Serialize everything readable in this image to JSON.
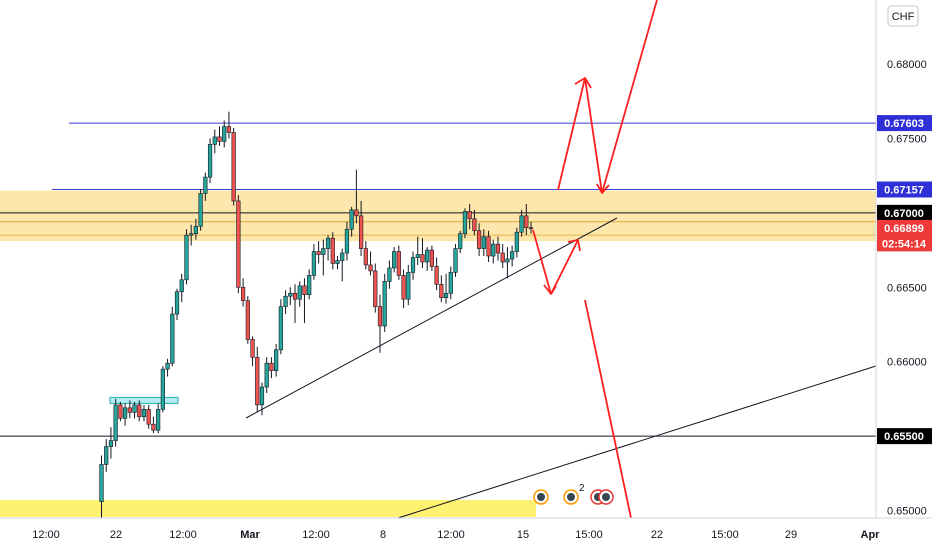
{
  "colors": {
    "up": "#26a69a",
    "down": "#ef5350",
    "zone": "#fbd36a",
    "blue_line": "#3c3cd6",
    "black_line": "#131722",
    "arrow": "#ff1f1f",
    "yellow_bar": "#ffee58",
    "cyan_box": "#b2ebf2"
  },
  "price_axis": {
    "currency": "CHF",
    "ticks": [
      "0.68000",
      "0.67500",
      "0.67000",
      "0.66500",
      "0.66000",
      "0.65500",
      "0.65000"
    ],
    "tick_values": [
      0.68,
      0.675,
      0.67,
      0.665,
      0.66,
      0.655,
      0.65
    ],
    "labels": [
      {
        "text": "0.67603",
        "value": 0.67603,
        "bg": "#2f2fd8",
        "fg": "#ffffff"
      },
      {
        "text": "0.67157",
        "value": 0.67157,
        "bg": "#2f2fd8",
        "fg": "#ffffff"
      },
      {
        "text": "0.67000",
        "value": 0.67,
        "bg": "#000000",
        "fg": "#ffffff"
      },
      {
        "text": "0.66899",
        "value": 0.66899,
        "bg": "#ef3a3a",
        "fg": "#ffffff"
      },
      {
        "text": "02:54:14",
        "value": 0.66795,
        "bg": "#ef3a3a",
        "fg": "#ffffff"
      },
      {
        "text": "0.65500",
        "value": 0.655,
        "bg": "#000000",
        "fg": "#ffffff"
      }
    ]
  },
  "time_axis": {
    "labels": [
      "12:00",
      "22",
      "12:00",
      "Mar",
      "12:00",
      "8",
      "12:00",
      "15",
      "15:00",
      "22",
      "15:00",
      "29",
      "Apr"
    ],
    "bold": [
      "Mar",
      "Apr"
    ]
  },
  "chart_data": {
    "type": "candlestick",
    "symbol_currency": "CHF",
    "ylim": [
      0.6495,
      0.6843
    ],
    "candles": [
      [
        0.6506,
        0.6537,
        0.6494,
        0.6531
      ],
      [
        0.6531,
        0.6548,
        0.6526,
        0.6543
      ],
      [
        0.6543,
        0.6556,
        0.6535,
        0.6547
      ],
      [
        0.6547,
        0.6575,
        0.6543,
        0.6571
      ],
      [
        0.6571,
        0.6573,
        0.656,
        0.6562
      ],
      [
        0.6562,
        0.6572,
        0.6557,
        0.6569
      ],
      [
        0.6569,
        0.6574,
        0.6562,
        0.6566
      ],
      [
        0.6566,
        0.6573,
        0.6562,
        0.6571
      ],
      [
        0.6571,
        0.6574,
        0.656,
        0.6563
      ],
      [
        0.6563,
        0.6571,
        0.656,
        0.6568
      ],
      [
        0.6568,
        0.6571,
        0.6555,
        0.6558
      ],
      [
        0.6558,
        0.6563,
        0.6552,
        0.6554
      ],
      [
        0.6554,
        0.6572,
        0.6552,
        0.6568
      ],
      [
        0.6568,
        0.6597,
        0.6566,
        0.6595
      ],
      [
        0.6595,
        0.6602,
        0.659,
        0.6599
      ],
      [
        0.6599,
        0.6637,
        0.6597,
        0.6632
      ],
      [
        0.6632,
        0.6649,
        0.6628,
        0.6647
      ],
      [
        0.6647,
        0.6659,
        0.664,
        0.6655
      ],
      [
        0.6655,
        0.6689,
        0.6652,
        0.6685
      ],
      [
        0.6685,
        0.6692,
        0.6678,
        0.6686
      ],
      [
        0.6686,
        0.6696,
        0.6682,
        0.6691
      ],
      [
        0.6691,
        0.6716,
        0.6688,
        0.6713
      ],
      [
        0.6713,
        0.6727,
        0.6708,
        0.6724
      ],
      [
        0.6724,
        0.675,
        0.672,
        0.6746
      ],
      [
        0.6746,
        0.6756,
        0.674,
        0.6751
      ],
      [
        0.6751,
        0.6758,
        0.6745,
        0.6748
      ],
      [
        0.6748,
        0.6762,
        0.6744,
        0.6758
      ],
      [
        0.6758,
        0.6768,
        0.675,
        0.6754
      ],
      [
        0.6754,
        0.6757,
        0.6705,
        0.6708
      ],
      [
        0.6708,
        0.6712,
        0.6646,
        0.665
      ],
      [
        0.665,
        0.6656,
        0.6637,
        0.6641
      ],
      [
        0.6641,
        0.6644,
        0.6612,
        0.6615
      ],
      [
        0.6615,
        0.6617,
        0.6597,
        0.6603
      ],
      [
        0.6603,
        0.661,
        0.6566,
        0.6571
      ],
      [
        0.6571,
        0.6586,
        0.6564,
        0.6583
      ],
      [
        0.6583,
        0.6603,
        0.6579,
        0.6599
      ],
      [
        0.6599,
        0.6603,
        0.6589,
        0.6594
      ],
      [
        0.6594,
        0.6612,
        0.659,
        0.6608
      ],
      [
        0.6608,
        0.6642,
        0.6605,
        0.6637
      ],
      [
        0.6637,
        0.6648,
        0.6632,
        0.6644
      ],
      [
        0.6644,
        0.665,
        0.6638,
        0.6646
      ],
      [
        0.6646,
        0.6652,
        0.6626,
        0.6642
      ],
      [
        0.6642,
        0.6654,
        0.6637,
        0.6651
      ],
      [
        0.6651,
        0.6656,
        0.6626,
        0.6645
      ],
      [
        0.6645,
        0.6662,
        0.6642,
        0.6658
      ],
      [
        0.6658,
        0.6679,
        0.6655,
        0.6674
      ],
      [
        0.6674,
        0.6681,
        0.6666,
        0.6672
      ],
      [
        0.6672,
        0.6682,
        0.6658,
        0.6676
      ],
      [
        0.6676,
        0.6685,
        0.6668,
        0.6683
      ],
      [
        0.6683,
        0.6687,
        0.6662,
        0.6666
      ],
      [
        0.6666,
        0.6671,
        0.6662,
        0.6668
      ],
      [
        0.6668,
        0.6676,
        0.6654,
        0.6673
      ],
      [
        0.6673,
        0.6694,
        0.6668,
        0.6689
      ],
      [
        0.6689,
        0.6704,
        0.6684,
        0.6702
      ],
      [
        0.6702,
        0.6729,
        0.6693,
        0.6698
      ],
      [
        0.6698,
        0.6708,
        0.6671,
        0.6676
      ],
      [
        0.6676,
        0.6681,
        0.6662,
        0.6665
      ],
      [
        0.6665,
        0.6674,
        0.6658,
        0.6661
      ],
      [
        0.6661,
        0.6666,
        0.6633,
        0.6637
      ],
      [
        0.6637,
        0.6645,
        0.6606,
        0.6624
      ],
      [
        0.6624,
        0.6659,
        0.662,
        0.6654
      ],
      [
        0.6654,
        0.6668,
        0.6649,
        0.6663
      ],
      [
        0.6663,
        0.6677,
        0.666,
        0.6674
      ],
      [
        0.6674,
        0.6678,
        0.6655,
        0.6658
      ],
      [
        0.6658,
        0.6662,
        0.6636,
        0.6642
      ],
      [
        0.6642,
        0.6665,
        0.6638,
        0.666
      ],
      [
        0.666,
        0.6674,
        0.6655,
        0.667
      ],
      [
        0.667,
        0.6684,
        0.6665,
        0.6672
      ],
      [
        0.6672,
        0.6683,
        0.6663,
        0.6667
      ],
      [
        0.6667,
        0.6677,
        0.6661,
        0.6675
      ],
      [
        0.6675,
        0.6678,
        0.6661,
        0.6664
      ],
      [
        0.6664,
        0.667,
        0.6648,
        0.6652
      ],
      [
        0.6652,
        0.6658,
        0.664,
        0.6643
      ],
      [
        0.6643,
        0.6659,
        0.6639,
        0.6646
      ],
      [
        0.6646,
        0.6664,
        0.6642,
        0.666
      ],
      [
        0.666,
        0.6679,
        0.6657,
        0.6676
      ],
      [
        0.6676,
        0.6688,
        0.6673,
        0.6686
      ],
      [
        0.6686,
        0.6703,
        0.6683,
        0.6701
      ],
      [
        0.6701,
        0.6706,
        0.6689,
        0.6696
      ],
      [
        0.6696,
        0.6702,
        0.6685,
        0.6688
      ],
      [
        0.6688,
        0.6693,
        0.6671,
        0.6676
      ],
      [
        0.6676,
        0.6689,
        0.6671,
        0.6684
      ],
      [
        0.6684,
        0.6688,
        0.6667,
        0.6671
      ],
      [
        0.6671,
        0.6682,
        0.6666,
        0.6679
      ],
      [
        0.6679,
        0.6684,
        0.6668,
        0.6673
      ],
      [
        0.6673,
        0.6679,
        0.6663,
        0.6667
      ],
      [
        0.6667,
        0.6677,
        0.6656,
        0.6669
      ],
      [
        0.6669,
        0.6678,
        0.6664,
        0.6674
      ],
      [
        0.6674,
        0.669,
        0.667,
        0.6687
      ],
      [
        0.6687,
        0.6702,
        0.6684,
        0.6698
      ],
      [
        0.6698,
        0.6706,
        0.6685,
        0.669
      ],
      [
        0.669,
        0.6694,
        0.6686,
        0.66899
      ]
    ]
  },
  "overlay": {
    "zone_high": 0.6715,
    "zone_low": 0.6681,
    "zone_mid_line": 0.6694,
    "hline_1": 0.67603,
    "hline_2": 0.67157,
    "hline_3": 0.67,
    "hline_4": 0.655,
    "cyan_box_level": 0.6574,
    "yellow_bar_level": 0.6506,
    "notes": {
      "badge_count": "2"
    }
  }
}
